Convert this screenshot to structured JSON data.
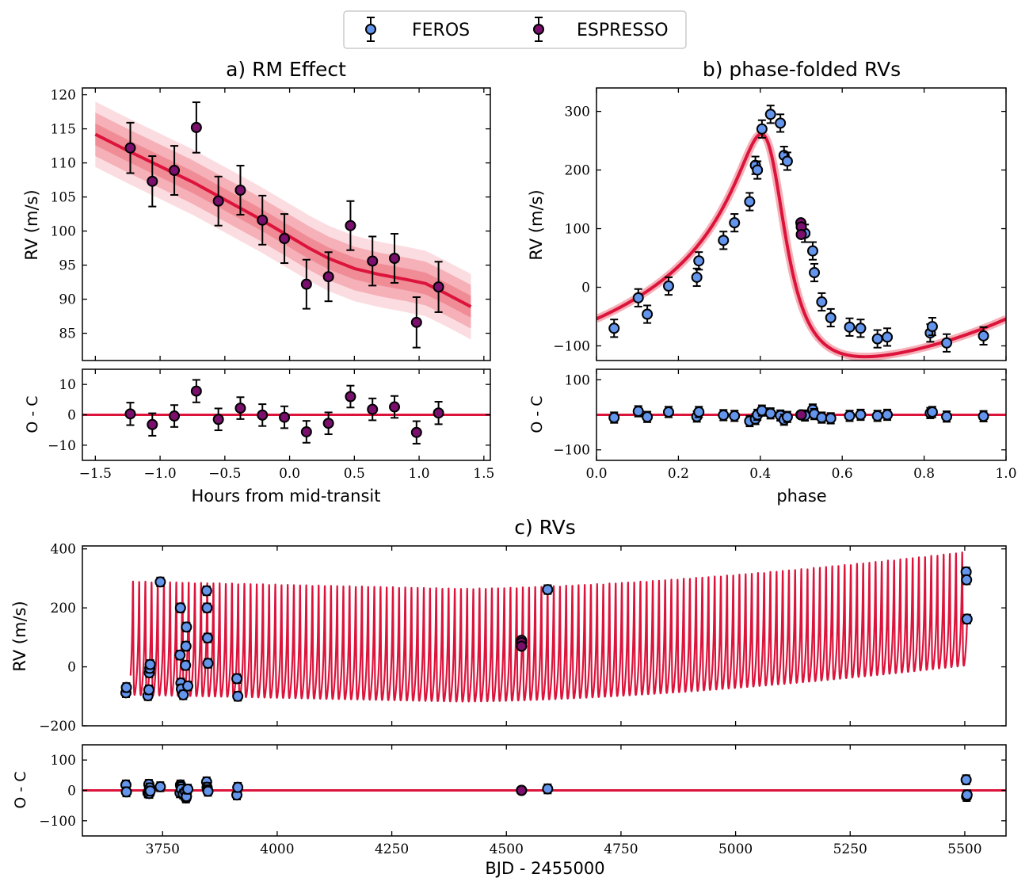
{
  "chart_data": {
    "legend": {
      "position": "top-center",
      "entries": [
        {
          "label": "FEROS",
          "color": "#6495ed"
        },
        {
          "label": "ESPRESSO",
          "color": "#7b0f6e"
        }
      ]
    },
    "colors": {
      "model": "#dc143c",
      "feros": "#6495ed",
      "espresso": "#7b0f6e",
      "band_inner": "#f08c96",
      "band_mid": "#f5b0b8",
      "band_outer": "#fbdde1"
    },
    "panels": {
      "a": {
        "type": "scatter",
        "title": "a) RM Effect",
        "ylabel": "RV (m/s)",
        "xlabel": "Hours from mid-transit",
        "xlim": [
          -1.6,
          1.55
        ],
        "ylim": [
          81,
          121
        ],
        "xticks": [
          -1.5,
          -1.0,
          -0.5,
          0.0,
          0.5,
          1.0,
          1.5
        ],
        "xtick_labels": [
          "−1.5",
          "−1.0",
          "−0.5",
          "0.0",
          "0.5",
          "1.0",
          "1.5"
        ],
        "yticks": [
          85,
          90,
          95,
          100,
          105,
          110,
          115,
          120
        ],
        "ytick_labels": [
          "85",
          "90",
          "95",
          "100",
          "105",
          "110",
          "115",
          "120"
        ],
        "model_x": [
          -1.5,
          -1.25,
          -1.0,
          -0.75,
          -0.5,
          -0.25,
          0.0,
          0.15,
          0.3,
          0.5,
          0.7,
          0.9,
          1.05,
          1.2,
          1.4
        ],
        "model_y": [
          114.2,
          111.8,
          109.5,
          107.2,
          104.6,
          102.0,
          99.2,
          97.5,
          96.0,
          94.5,
          93.6,
          92.9,
          92.3,
          90.9,
          88.9
        ],
        "band_half_widths": [
          1.6,
          3.2,
          4.8
        ],
        "points": {
          "x": [
            -1.23,
            -1.06,
            -0.89,
            -0.72,
            -0.55,
            -0.38,
            -0.21,
            -0.04,
            0.13,
            0.3,
            0.47,
            0.64,
            0.81,
            0.98,
            1.15
          ],
          "y": [
            112.2,
            107.3,
            108.9,
            115.2,
            104.4,
            106.0,
            101.6,
            98.9,
            92.2,
            93.3,
            100.8,
            95.6,
            96.0,
            86.6,
            91.8
          ],
          "err": [
            3.7,
            3.7,
            3.6,
            3.7,
            3.6,
            3.6,
            3.6,
            3.6,
            3.6,
            3.6,
            3.6,
            3.6,
            3.6,
            3.7,
            3.7
          ],
          "instrument": "ESPRESSO"
        },
        "residuals": {
          "ylim": [
            -15,
            15
          ],
          "yticks": [
            -10,
            0,
            10
          ],
          "ytick_labels": [
            "−10",
            "0",
            "10"
          ],
          "ylabel": "O - C",
          "values": [
            0.3,
            -3.2,
            -0.4,
            7.8,
            -1.5,
            2.2,
            -0.1,
            -0.8,
            -5.6,
            -2.8,
            6.0,
            1.8,
            2.6,
            -5.8,
            0.6
          ]
        }
      },
      "b": {
        "type": "scatter",
        "title": "b) phase-folded RVs",
        "ylabel": "RV (m/s)",
        "xlabel": "phase",
        "xlim": [
          0.0,
          1.0
        ],
        "ylim": [
          -125,
          340
        ],
        "xticks": [
          0.0,
          0.2,
          0.4,
          0.6,
          0.8,
          1.0
        ],
        "xtick_labels": [
          "0.0",
          "0.2",
          "0.4",
          "0.6",
          "0.8",
          "1.0"
        ],
        "yticks": [
          -100,
          0,
          100,
          200,
          300
        ],
        "ytick_labels": [
          "−100",
          "0",
          "100",
          "200",
          "300"
        ],
        "model": {
          "K": 190,
          "e": 0.56,
          "omega_deg": 40,
          "tp_phase": 0.43,
          "offset": -10
        },
        "feros_points": {
          "x": [
            0.043,
            0.102,
            0.124,
            0.176,
            0.245,
            0.25,
            0.31,
            0.337,
            0.374,
            0.388,
            0.393,
            0.404,
            0.425,
            0.449,
            0.458,
            0.466,
            0.509,
            0.528,
            0.532,
            0.55,
            0.572,
            0.618,
            0.645,
            0.686,
            0.71,
            0.815,
            0.82,
            0.855,
            0.945
          ],
          "y": [
            -70,
            -18,
            -46,
            2,
            17,
            45,
            80,
            110,
            146,
            208,
            200,
            270,
            295,
            280,
            225,
            215,
            92,
            62,
            25,
            -25,
            -52,
            -68,
            -70,
            -88,
            -85,
            -78,
            -67,
            -95,
            -83
          ],
          "err": [
            15,
            15,
            15,
            15,
            15,
            15,
            15,
            15,
            15,
            15,
            15,
            15,
            15,
            15,
            15,
            15,
            15,
            15,
            15,
            15,
            15,
            15,
            15,
            15,
            15,
            15,
            15,
            15,
            15
          ]
        },
        "espresso_points": {
          "x": [
            0.499,
            0.5,
            0.5
          ],
          "y": [
            110,
            103,
            90
          ],
          "err": [
            4,
            4,
            4
          ]
        },
        "residuals": {
          "ylim": [
            -130,
            130
          ],
          "yticks": [
            -100,
            100
          ],
          "ytick_labels": [
            "−100",
            "100"
          ],
          "ylabel": "O - C",
          "feros_values": [
            -8,
            10,
            -6,
            8,
            -5,
            8,
            -1,
            -3,
            -18,
            -12,
            0,
            12,
            4,
            -2,
            -14,
            -6,
            -2,
            15,
            2,
            -8,
            -10,
            -3,
            0,
            -3,
            0,
            5,
            8,
            -5,
            -4
          ],
          "espresso_values": [
            0,
            0,
            0
          ]
        }
      },
      "c": {
        "type": "scatter",
        "title": "c) RVs",
        "ylabel": "RV (m/s)",
        "xlabel": "BJD - 2455000",
        "xlim": [
          3575,
          5590
        ],
        "ylim": [
          -200,
          410
        ],
        "xticks": [
          3750,
          4000,
          4250,
          4500,
          4750,
          5000,
          5250,
          5500
        ],
        "xtick_labels": [
          "3750",
          "4000",
          "4250",
          "4500",
          "4750",
          "5000",
          "5250",
          "5500"
        ],
        "yticks": [
          -200,
          0,
          200,
          400
        ],
        "ytick_labels": [
          "−200",
          "0",
          "200",
          "400"
        ],
        "model": {
          "t_start": 3680,
          "t_end": 5505,
          "period": 13.5,
          "base_min": -95,
          "base_max": 290,
          "end_min": 5,
          "end_max": 390,
          "mid_t": 4400,
          "mid_min": -118,
          "mid_max": 265
        },
        "feros_points": {
          "t": [
            3670,
            3671,
            3718,
            3720,
            3721,
            3722,
            3723,
            3745,
            3788,
            3789,
            3790,
            3791,
            3795,
            3800,
            3801,
            3802,
            3805,
            3846,
            3847,
            3848,
            3849,
            3912,
            3914,
            4590,
            5503,
            5504,
            5505
          ],
          "y": [
            -88,
            -70,
            -98,
            -78,
            -20,
            -5,
            8,
            288,
            40,
            200,
            -55,
            -75,
            -95,
            5,
            70,
            135,
            -65,
            258,
            200,
            98,
            12,
            -40,
            -100,
            262,
            322,
            295,
            162
          ],
          "err": [
            15,
            15,
            15,
            15,
            15,
            15,
            15,
            15,
            15,
            15,
            15,
            15,
            15,
            15,
            15,
            15,
            15,
            15,
            15,
            15,
            15,
            15,
            15,
            15,
            15,
            15,
            15
          ]
        },
        "espresso_points": {
          "t": [
            4533,
            4533,
            4533
          ],
          "y": [
            90,
            82,
            70
          ],
          "err": [
            4,
            4,
            4
          ]
        },
        "residuals": {
          "ylim": [
            -150,
            150
          ],
          "yticks": [
            -100,
            0,
            100
          ],
          "ytick_labels": [
            "−100",
            "0",
            "100"
          ],
          "ylabel": "O - C",
          "feros_values": [
            18,
            -5,
            -8,
            20,
            -10,
            8,
            -2,
            12,
            -8,
            18,
            12,
            4,
            -12,
            -5,
            -25,
            -20,
            4,
            28,
            10,
            2,
            -3,
            -15,
            10,
            5,
            35,
            -20,
            -15
          ],
          "espresso_values": [
            0,
            0,
            0
          ]
        }
      }
    }
  }
}
